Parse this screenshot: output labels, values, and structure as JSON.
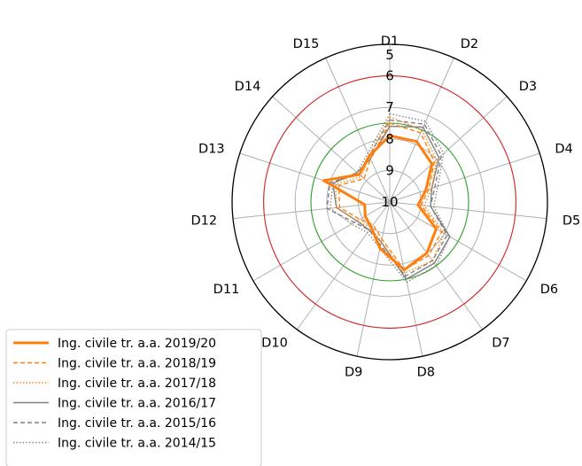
{
  "chart_data": {
    "type": "radar",
    "title": "",
    "categories": [
      "D1",
      "D2",
      "D3",
      "D4",
      "D5",
      "D6",
      "D7",
      "D8",
      "D9",
      "D10",
      "D11",
      "D12",
      "D13",
      "D14",
      "D15"
    ],
    "radial_ticks": [
      "5",
      "6",
      "7",
      "8",
      "9",
      "10"
    ],
    "r_range": [
      10,
      5
    ],
    "reference_circles": [
      {
        "value": 6,
        "color": "#d62728"
      },
      {
        "value": 7.5,
        "color": "#2ca02c"
      }
    ],
    "series": [
      {
        "name": "Ing. civile tr. a.a. 2019/20",
        "color": "#ff7f0e",
        "style": "solid",
        "width": 3,
        "values": [
          7.9,
          7.9,
          8.2,
          8.8,
          9.1,
          8.3,
          8.0,
          7.8,
          8.5,
          9.0,
          9.1,
          9.2,
          7.8,
          8.7,
          8.4
        ]
      },
      {
        "name": "Ing. civile tr. a.a. 2018/19",
        "color": "#ff7f0e",
        "style": "dashed",
        "width": 1.4,
        "values": [
          7.5,
          7.6,
          8.1,
          8.7,
          9.0,
          8.1,
          7.9,
          7.8,
          8.8,
          9.1,
          8.9,
          8.4,
          8.3,
          8.9,
          8.5
        ]
      },
      {
        "name": "Ing. civile tr. a.a. 2017/18",
        "color": "#ff7f0e",
        "style": "dotted",
        "width": 1.4,
        "values": [
          7.3,
          7.5,
          8.0,
          8.6,
          8.9,
          8.0,
          7.7,
          7.7,
          8.7,
          9.0,
          8.8,
          8.3,
          8.2,
          8.8,
          8.4
        ]
      },
      {
        "name": "Ing. civile tr. a.a. 2016/17",
        "color": "#808080",
        "style": "solid",
        "width": 1.4,
        "values": [
          7.6,
          7.4,
          7.9,
          8.6,
          8.7,
          7.8,
          7.6,
          7.5,
          8.7,
          8.9,
          8.8,
          8.3,
          8.1,
          8.6,
          8.5
        ]
      },
      {
        "name": "Ing. civile tr. a.a. 2015/16",
        "color": "#808080",
        "style": "dashed",
        "width": 1.4,
        "values": [
          7.4,
          7.3,
          7.8,
          8.5,
          8.7,
          7.9,
          7.7,
          7.6,
          8.6,
          8.9,
          8.7,
          8.0,
          8.0,
          8.7,
          8.4
        ]
      },
      {
        "name": "Ing. civile tr. a.a. 2014/15",
        "color": "#808080",
        "style": "dotted",
        "width": 1.4,
        "values": [
          7.2,
          7.2,
          7.7,
          8.4,
          8.6,
          7.8,
          7.5,
          7.4,
          8.5,
          8.8,
          8.6,
          8.1,
          8.1,
          8.6,
          8.3
        ]
      }
    ],
    "legend_position": "lower-left"
  }
}
